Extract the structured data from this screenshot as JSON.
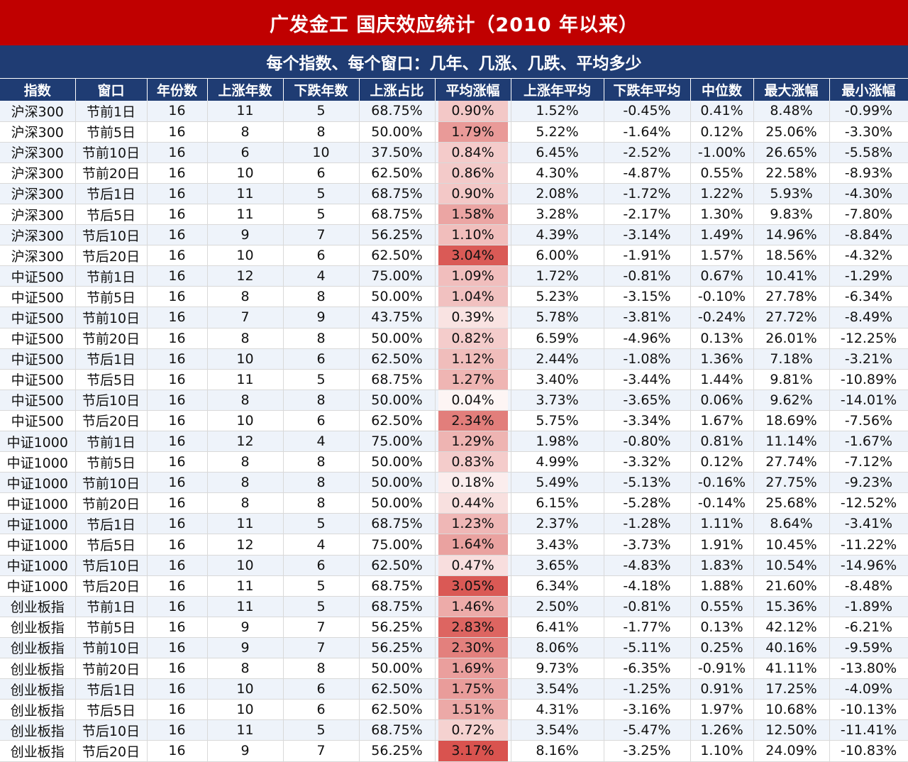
{
  "title": "广发金工  国庆效应统计（2010 年以来）",
  "subtitle": "每个指数、每个窗口：几年、几涨、几跌、平均多少",
  "columns": [
    "指数",
    "窗口",
    "年份数",
    "上涨年数",
    "下跌年数",
    "上涨占比",
    "平均涨幅",
    "上涨年平均",
    "下跌年平均",
    "中位数",
    "最大涨幅",
    "最小涨幅"
  ],
  "avg_color": "#d9534f",
  "rows": [
    [
      "沪深300",
      "节前1日",
      "16",
      "11",
      "5",
      "68.75%",
      "0.90%",
      "1.52%",
      "-0.45%",
      "0.41%",
      "8.48%",
      "-0.99%"
    ],
    [
      "沪深300",
      "节前5日",
      "16",
      "8",
      "8",
      "50.00%",
      "1.79%",
      "5.22%",
      "-1.64%",
      "0.12%",
      "25.06%",
      "-3.30%"
    ],
    [
      "沪深300",
      "节前10日",
      "16",
      "6",
      "10",
      "37.50%",
      "0.84%",
      "6.45%",
      "-2.52%",
      "-1.00%",
      "26.65%",
      "-5.58%"
    ],
    [
      "沪深300",
      "节前20日",
      "16",
      "10",
      "6",
      "62.50%",
      "0.86%",
      "4.30%",
      "-4.87%",
      "0.55%",
      "22.58%",
      "-8.93%"
    ],
    [
      "沪深300",
      "节后1日",
      "16",
      "11",
      "5",
      "68.75%",
      "0.90%",
      "2.08%",
      "-1.72%",
      "1.22%",
      "5.93%",
      "-4.30%"
    ],
    [
      "沪深300",
      "节后5日",
      "16",
      "11",
      "5",
      "68.75%",
      "1.58%",
      "3.28%",
      "-2.17%",
      "1.30%",
      "9.83%",
      "-7.80%"
    ],
    [
      "沪深300",
      "节后10日",
      "16",
      "9",
      "7",
      "56.25%",
      "1.10%",
      "4.39%",
      "-3.14%",
      "1.49%",
      "14.96%",
      "-8.84%"
    ],
    [
      "沪深300",
      "节后20日",
      "16",
      "10",
      "6",
      "62.50%",
      "3.04%",
      "6.00%",
      "-1.91%",
      "1.57%",
      "18.56%",
      "-4.32%"
    ],
    [
      "中证500",
      "节前1日",
      "16",
      "12",
      "4",
      "75.00%",
      "1.09%",
      "1.72%",
      "-0.81%",
      "0.67%",
      "10.41%",
      "-1.29%"
    ],
    [
      "中证500",
      "节前5日",
      "16",
      "8",
      "8",
      "50.00%",
      "1.04%",
      "5.23%",
      "-3.15%",
      "-0.10%",
      "27.78%",
      "-6.34%"
    ],
    [
      "中证500",
      "节前10日",
      "16",
      "7",
      "9",
      "43.75%",
      "0.39%",
      "5.78%",
      "-3.81%",
      "-0.24%",
      "27.72%",
      "-8.49%"
    ],
    [
      "中证500",
      "节前20日",
      "16",
      "8",
      "8",
      "50.00%",
      "0.82%",
      "6.59%",
      "-4.96%",
      "0.13%",
      "26.01%",
      "-12.25%"
    ],
    [
      "中证500",
      "节后1日",
      "16",
      "10",
      "6",
      "62.50%",
      "1.12%",
      "2.44%",
      "-1.08%",
      "1.36%",
      "7.18%",
      "-3.21%"
    ],
    [
      "中证500",
      "节后5日",
      "16",
      "11",
      "5",
      "68.75%",
      "1.27%",
      "3.40%",
      "-3.44%",
      "1.44%",
      "9.81%",
      "-10.89%"
    ],
    [
      "中证500",
      "节后10日",
      "16",
      "8",
      "8",
      "50.00%",
      "0.04%",
      "3.73%",
      "-3.65%",
      "0.06%",
      "9.62%",
      "-14.01%"
    ],
    [
      "中证500",
      "节后20日",
      "16",
      "10",
      "6",
      "62.50%",
      "2.34%",
      "5.75%",
      "-3.34%",
      "1.67%",
      "18.69%",
      "-7.56%"
    ],
    [
      "中证1000",
      "节前1日",
      "16",
      "12",
      "4",
      "75.00%",
      "1.29%",
      "1.98%",
      "-0.80%",
      "0.81%",
      "11.14%",
      "-1.67%"
    ],
    [
      "中证1000",
      "节前5日",
      "16",
      "8",
      "8",
      "50.00%",
      "0.83%",
      "4.99%",
      "-3.32%",
      "0.12%",
      "27.74%",
      "-7.12%"
    ],
    [
      "中证1000",
      "节前10日",
      "16",
      "8",
      "8",
      "50.00%",
      "0.18%",
      "5.49%",
      "-5.13%",
      "-0.16%",
      "27.75%",
      "-9.23%"
    ],
    [
      "中证1000",
      "节前20日",
      "16",
      "8",
      "8",
      "50.00%",
      "0.44%",
      "6.15%",
      "-5.28%",
      "-0.14%",
      "25.68%",
      "-12.52%"
    ],
    [
      "中证1000",
      "节后1日",
      "16",
      "11",
      "5",
      "68.75%",
      "1.23%",
      "2.37%",
      "-1.28%",
      "1.11%",
      "8.64%",
      "-3.41%"
    ],
    [
      "中证1000",
      "节后5日",
      "16",
      "12",
      "4",
      "75.00%",
      "1.64%",
      "3.43%",
      "-3.73%",
      "1.91%",
      "10.45%",
      "-11.22%"
    ],
    [
      "中证1000",
      "节后10日",
      "16",
      "10",
      "6",
      "62.50%",
      "0.47%",
      "3.65%",
      "-4.83%",
      "1.83%",
      "10.54%",
      "-14.96%"
    ],
    [
      "中证1000",
      "节后20日",
      "16",
      "11",
      "5",
      "68.75%",
      "3.05%",
      "6.34%",
      "-4.18%",
      "1.88%",
      "21.60%",
      "-8.48%"
    ],
    [
      "创业板指",
      "节前1日",
      "16",
      "11",
      "5",
      "68.75%",
      "1.46%",
      "2.50%",
      "-0.81%",
      "0.55%",
      "15.36%",
      "-1.89%"
    ],
    [
      "创业板指",
      "节前5日",
      "16",
      "9",
      "7",
      "56.25%",
      "2.83%",
      "6.41%",
      "-1.77%",
      "0.13%",
      "42.12%",
      "-6.21%"
    ],
    [
      "创业板指",
      "节前10日",
      "16",
      "9",
      "7",
      "56.25%",
      "2.30%",
      "8.06%",
      "-5.11%",
      "0.25%",
      "40.16%",
      "-9.59%"
    ],
    [
      "创业板指",
      "节前20日",
      "16",
      "8",
      "8",
      "50.00%",
      "1.69%",
      "9.73%",
      "-6.35%",
      "-0.91%",
      "41.11%",
      "-13.80%"
    ],
    [
      "创业板指",
      "节后1日",
      "16",
      "10",
      "6",
      "62.50%",
      "1.75%",
      "3.54%",
      "-1.25%",
      "0.91%",
      "17.25%",
      "-4.09%"
    ],
    [
      "创业板指",
      "节后5日",
      "16",
      "10",
      "6",
      "62.50%",
      "1.51%",
      "4.31%",
      "-3.16%",
      "1.97%",
      "10.68%",
      "-10.13%"
    ],
    [
      "创业板指",
      "节后10日",
      "16",
      "11",
      "5",
      "68.75%",
      "0.72%",
      "3.54%",
      "-5.47%",
      "1.26%",
      "12.50%",
      "-11.41%"
    ],
    [
      "创业板指",
      "节后20日",
      "16",
      "9",
      "7",
      "56.25%",
      "3.17%",
      "8.16%",
      "-3.25%",
      "1.10%",
      "24.09%",
      "-10.83%"
    ]
  ]
}
